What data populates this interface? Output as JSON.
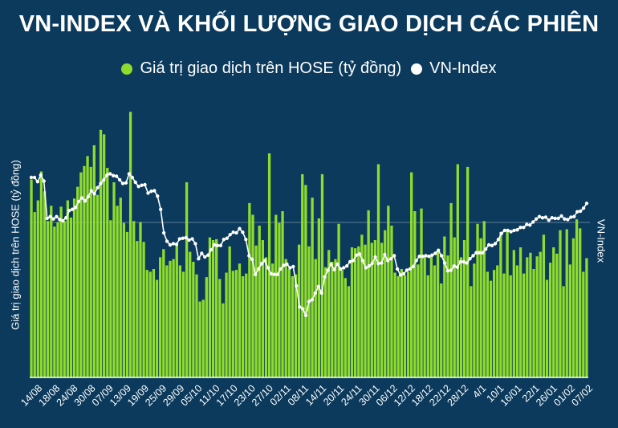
{
  "title": "VN-INDEX VÀ KHỐI LƯỢNG GIAO DỊCH CÁC PHIÊN",
  "legend": {
    "bars_label": "Giá trị giao dịch trên HOSE (tỷ đồng)",
    "line_label": "VN-Index"
  },
  "colors": {
    "bar": "#8fdc2c",
    "line": "#ffffff",
    "background": "#0b3a5c"
  },
  "chart_data": {
    "type": "bar",
    "ylabel": "Giá trị giao dịch trên HOSE (tỷ đồng)",
    "y2label": "VN-Index",
    "grid": false,
    "legend_position": "top",
    "x_tick_labels": [
      "14/08",
      "18/08",
      "24/08",
      "30/08",
      "07/09",
      "13/09",
      "19/09",
      "25/09",
      "29/09",
      "05/10",
      "11/10",
      "17/10",
      "23/10",
      "27/10",
      "02/11",
      "08/11",
      "14/11",
      "20/11",
      "24/11",
      "30/11",
      "06/12",
      "12/12",
      "18/12",
      "22/12",
      "28/12",
      "4/1",
      "10/1",
      "16/01",
      "22/1",
      "26/01",
      "01/02",
      "07/02"
    ],
    "series": [
      {
        "name": "Giá trị giao dịch trên HOSE (tỷ đồng)",
        "kind": "bar",
        "values": [
          219,
          183,
          196,
          228,
          206,
          173,
          190,
          167,
          172,
          189,
          173,
          196,
          177,
          198,
          211,
          227,
          234,
          245,
          233,
          257,
          202,
          274,
          269,
          232,
          174,
          216,
          190,
          199,
          171,
          161,
          294,
          173,
          151,
          172,
          150,
          119,
          117,
          120,
          108,
          133,
          142,
          124,
          129,
          131,
          148,
          124,
          117,
          216,
          139,
          128,
          114,
          84,
          86,
          111,
          155,
          152,
          153,
          109,
          82,
          116,
          145,
          118,
          119,
          126,
          112,
          115,
          193,
          180,
          146,
          168,
          152,
          133,
          248,
          126,
          180,
          171,
          184,
          131,
          120,
          112,
          114,
          147,
          225,
          213,
          145,
          199,
          131,
          176,
          225,
          122,
          141,
          128,
          131,
          170,
          119,
          110,
          101,
          144,
          143,
          145,
          158,
          147,
          185,
          149,
          152,
          236,
          149,
          163,
          190,
          168,
          116,
          112,
          120,
          113,
          117,
          227,
          184,
          125,
          187,
          134,
          113,
          134,
          124,
          139,
          104,
          156,
          135,
          193,
          155,
          236,
          133,
          152,
          233,
          101,
          126,
          170,
          154,
          173,
          117,
          107,
          119,
          124,
          161,
          115,
          164,
          113,
          141,
          124,
          144,
          115,
          133,
          138,
          120,
          134,
          139,
          158,
          108,
          127,
          144,
          137,
          163,
          101,
          164,
          125,
          154,
          175,
          165,
          117,
          132
        ],
        "y_range": [
          0,
          320
        ]
      },
      {
        "name": "VN-Index",
        "kind": "line",
        "values": [
          1202,
          1202,
          1195,
          1206,
          1196,
          1134,
          1137,
          1133,
          1137,
          1132,
          1130,
          1135,
          1147,
          1149,
          1152,
          1162,
          1168,
          1163,
          1170,
          1180,
          1175,
          1185,
          1192,
          1198,
          1206,
          1208,
          1205,
          1204,
          1198,
          1192,
          1193,
          1208,
          1202,
          1194,
          1187,
          1189,
          1190,
          1176,
          1179,
          1180,
          1171,
          1149,
          1110,
          1096,
          1090,
          1092,
          1091,
          1100,
          1101,
          1102,
          1098,
          1100,
          1092,
          1067,
          1076,
          1070,
          1073,
          1082,
          1090,
          1089,
          1089,
          1099,
          1101,
          1107,
          1111,
          1110,
          1117,
          1111,
          1099,
          1072,
          1066,
          1041,
          1050,
          1059,
          1064,
          1052,
          1042,
          1041,
          1041,
          1050,
          1056,
          1058,
          1052,
          1054,
          1022,
          987,
          984,
          973,
          996,
          999,
          1010,
          1021,
          1010,
          1037,
          1048,
          1058,
          1049,
          1058,
          1050,
          1052,
          1055,
          1062,
          1064,
          1073,
          1075,
          1064,
          1052,
          1055,
          1059,
          1070,
          1059,
          1060,
          1074,
          1064,
          1067,
          1072,
          1050,
          1040,
          1042,
          1048,
          1050,
          1054,
          1064,
          1071,
          1071,
          1072,
          1071,
          1073,
          1076,
          1081,
          1072,
          1060,
          1047,
          1048,
          1055,
          1053,
          1062,
          1062,
          1060,
          1067,
          1072,
          1077,
          1077,
          1077,
          1083,
          1090,
          1089,
          1092,
          1099,
          1109,
          1114,
          1114,
          1112,
          1114,
          1115,
          1119,
          1119,
          1124,
          1123,
          1128,
          1133,
          1137,
          1135,
          1136,
          1131,
          1135,
          1134,
          1134,
          1138,
          1133,
          1132,
          1136,
          1137,
          1145,
          1146,
          1151,
          1159
        ],
        "y_range": [
          870,
          1350
        ]
      }
    ]
  }
}
